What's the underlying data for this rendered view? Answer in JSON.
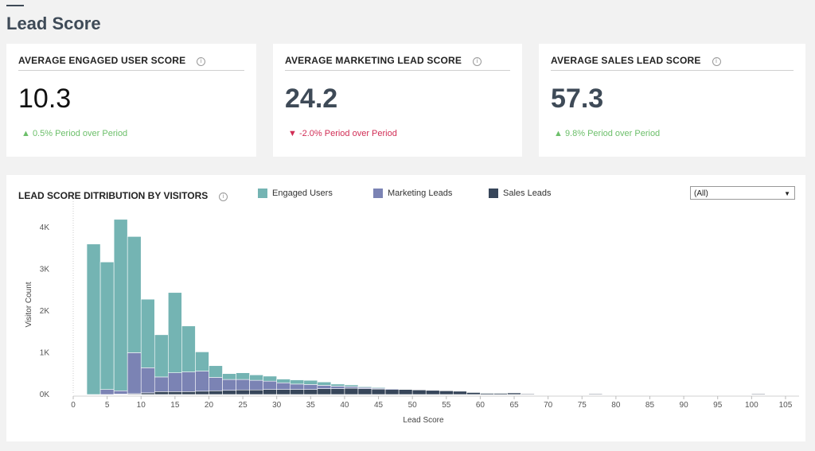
{
  "page_title": "Lead Score",
  "info_glyph": "i",
  "kpis": [
    {
      "label": "AVERAGE ENGAGED USER SCORE",
      "value": "10.3",
      "change": "▲ 0.5% Period over Period",
      "direction": "up",
      "value_color": "#111111"
    },
    {
      "label": "AVERAGE MARKETING LEAD SCORE",
      "value": "24.2",
      "change": "▼ -2.0% Period over Period",
      "direction": "down",
      "value_color": "#3e4a57"
    },
    {
      "label": "AVERAGE SALES LEAD SCORE",
      "value": "57.3",
      "change": "▲ 9.8% Period over Period",
      "direction": "up",
      "value_color": "#3e4a57"
    }
  ],
  "chart_title": "LEAD SCORE DITRIBUTION BY VISITORS",
  "filter": {
    "selected": "(All)",
    "caret": "▼"
  },
  "colors": {
    "engaged": "#74b4b3",
    "marketing": "#7b83b4",
    "sales": "#37465a",
    "up": "#6cbf6a",
    "down": "#d12d55"
  },
  "chart_data": {
    "type": "bar",
    "stacked": true,
    "xlabel": "Lead Score",
    "ylabel": "Visitor Count",
    "xlim": [
      0,
      107
    ],
    "ylim": [
      0,
      4300
    ],
    "x_ticks": [
      0,
      5,
      10,
      15,
      20,
      25,
      30,
      35,
      40,
      45,
      50,
      55,
      60,
      65,
      70,
      75,
      80,
      85,
      90,
      95,
      100,
      105
    ],
    "y_ticks": [
      {
        "v": 0,
        "label": "0K"
      },
      {
        "v": 1000,
        "label": "1K"
      },
      {
        "v": 2000,
        "label": "2K"
      },
      {
        "v": 3000,
        "label": "3K"
      },
      {
        "v": 4000,
        "label": "4K"
      }
    ],
    "bin_width": 2,
    "bin_starts": [
      2,
      4,
      6,
      8,
      10,
      12,
      14,
      16,
      18,
      20,
      22,
      24,
      26,
      28,
      30,
      32,
      34,
      36,
      38,
      40,
      42,
      44,
      46,
      48,
      50,
      52,
      54,
      56,
      58,
      60,
      62,
      64,
      66,
      68,
      70,
      72,
      74,
      76,
      78,
      80,
      82,
      84,
      86,
      88,
      90,
      92,
      94,
      96,
      98,
      100
    ],
    "series": [
      {
        "name": "Sales Leads",
        "key": "sales",
        "values": [
          0,
          0,
          10,
          20,
          40,
          70,
          70,
          70,
          80,
          90,
          100,
          110,
          110,
          120,
          120,
          120,
          120,
          140,
          140,
          150,
          140,
          130,
          120,
          120,
          110,
          100,
          90,
          80,
          50,
          30,
          30,
          40,
          20,
          10,
          10,
          10,
          10,
          20,
          10,
          5,
          5,
          5,
          5,
          5,
          5,
          5,
          5,
          5,
          5,
          20
        ]
      },
      {
        "name": "Marketing Leads",
        "key": "marketing",
        "values": [
          0,
          120,
          80,
          980,
          600,
          350,
          450,
          470,
          480,
          320,
          260,
          250,
          230,
          200,
          160,
          130,
          120,
          80,
          60,
          40,
          30,
          20,
          20,
          10,
          10,
          10,
          10,
          5,
          5,
          5,
          5,
          0,
          0,
          0,
          0,
          0,
          0,
          0,
          0,
          0,
          0,
          0,
          0,
          0,
          0,
          0,
          0,
          0,
          0,
          0
        ]
      },
      {
        "name": "Engaged Users",
        "key": "engaged",
        "values": [
          3600,
          3050,
          4100,
          2780,
          1640,
          1010,
          1920,
          1100,
          460,
          280,
          140,
          160,
          130,
          120,
          90,
          100,
          100,
          80,
          50,
          40,
          20,
          20,
          10,
          10,
          10,
          5,
          5,
          5,
          5,
          5,
          5,
          5,
          5,
          5,
          5,
          5,
          5,
          5,
          5,
          5,
          5,
          5,
          5,
          5,
          5,
          5,
          5,
          5,
          5,
          5
        ]
      }
    ]
  }
}
